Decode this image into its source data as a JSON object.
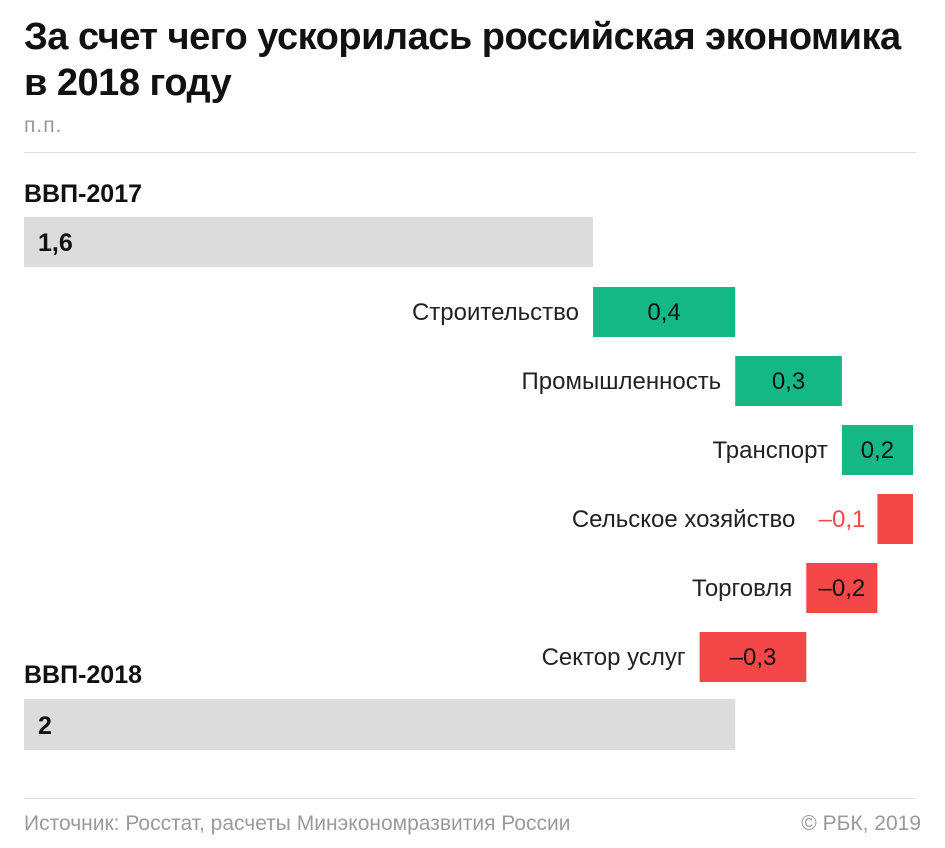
{
  "title": "За счет чего ускорилась российская экономика в 2018 году",
  "unit": "п.п.",
  "source": "Источник: Росстат, расчеты Минэкономразвития России",
  "copyright": "© РБК, 2019",
  "colors": {
    "total": "#dcdcdc",
    "positive": "#14b885",
    "negative": "#f44848",
    "negative_text": "#f44848"
  },
  "chart_data": {
    "type": "bar",
    "subtype": "waterfall",
    "xlim": [
      0,
      2.5
    ],
    "start": {
      "label": "ВВП-2017",
      "value": 1.6,
      "value_label": "1,6"
    },
    "steps": [
      {
        "label": "Строительство",
        "value": 0.4,
        "value_label": "0,4"
      },
      {
        "label": "Промышленность",
        "value": 0.3,
        "value_label": "0,3"
      },
      {
        "label": "Транспорт",
        "value": 0.2,
        "value_label": "0,2"
      },
      {
        "label": "Сельское хозяйство",
        "value": -0.1,
        "value_label": "–0,1"
      },
      {
        "label": "Торговля",
        "value": -0.2,
        "value_label": "–0,2"
      },
      {
        "label": "Сектор услуг",
        "value": -0.3,
        "value_label": "–0,3"
      }
    ],
    "end": {
      "label": "ВВП-2018",
      "value": 2,
      "value_label": "2"
    }
  }
}
